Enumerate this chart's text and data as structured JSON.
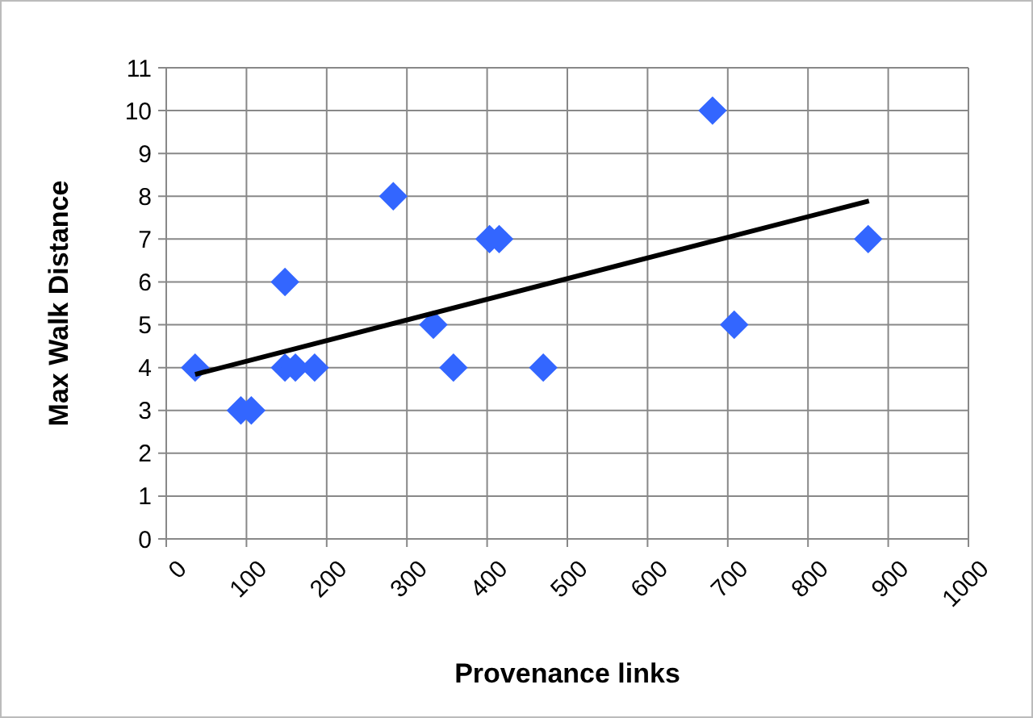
{
  "chart_data": {
    "type": "scatter",
    "xlabel": "Provenance links",
    "ylabel": "Max Walk Distance",
    "xlim": [
      0,
      1000
    ],
    "xticks": [
      0,
      100,
      200,
      300,
      400,
      500,
      600,
      700,
      800,
      900,
      1000
    ],
    "ylim": [
      0,
      11
    ],
    "yticks": [
      0,
      1,
      2,
      3,
      4,
      5,
      6,
      7,
      8,
      9,
      10,
      11
    ],
    "grid": true,
    "marker": "diamond",
    "series": [
      {
        "color": "#3366ff",
        "x": [
          36,
          93,
          106,
          148,
          148,
          161,
          185,
          283,
          333,
          358,
          403,
          415,
          470,
          681,
          708,
          875
        ],
        "values": [
          4,
          3,
          3,
          6,
          4,
          4,
          4,
          8,
          5,
          4,
          7,
          7,
          4,
          10,
          5,
          7
        ]
      },
      {
        "type": "line",
        "color": "#000000",
        "marker": "none",
        "x": [
          36,
          876
        ],
        "values": [
          3.84,
          7.89
        ]
      }
    ]
  }
}
